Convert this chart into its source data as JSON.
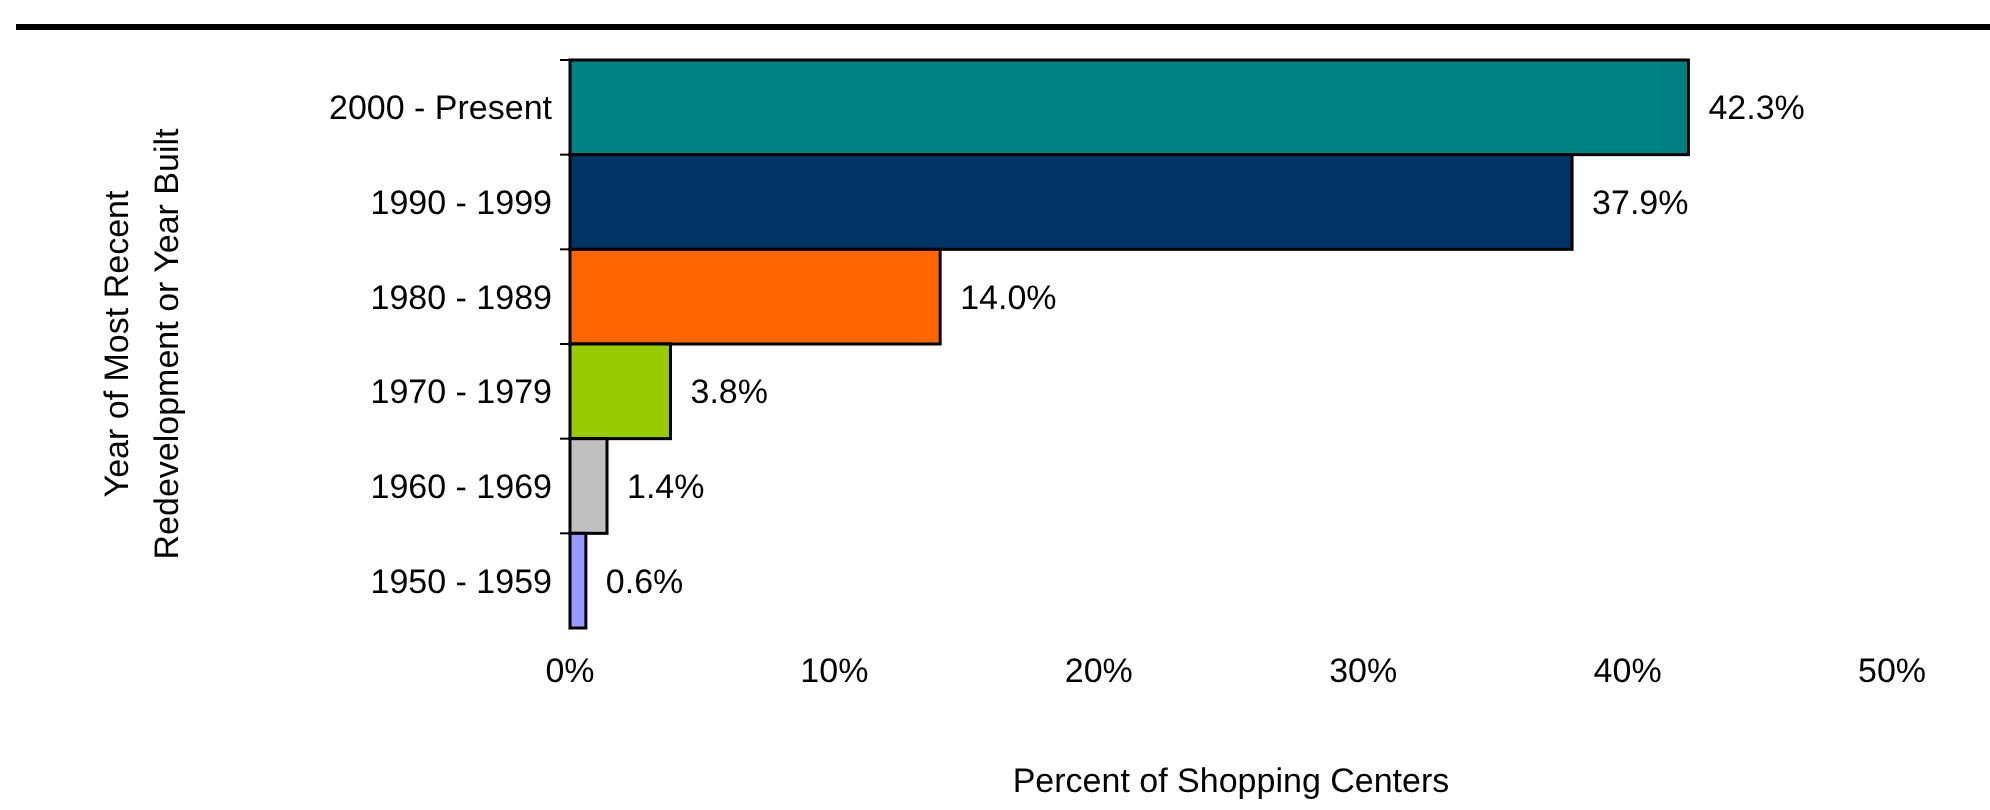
{
  "chart_data": {
    "type": "bar",
    "orientation": "horizontal",
    "xlabel": "Percent of Shopping Centers",
    "ylabel": "Year of Most Recent\nRedevelopment or Year Built",
    "categories": [
      "2000 - Present",
      "1990 - 1999",
      "1980 - 1989",
      "1970 - 1979",
      "1960 - 1969",
      "1950 - 1959"
    ],
    "values": [
      42.3,
      37.9,
      14.0,
      3.8,
      1.4,
      0.6
    ],
    "colors": [
      "#008080",
      "#003366",
      "#ff6600",
      "#99cc00",
      "#c0c0c0",
      "#9999ff"
    ],
    "value_labels": [
      "42.3%",
      "37.9%",
      "14.0%",
      "3.8%",
      "1.4%",
      "0.6%"
    ],
    "xlim": [
      0,
      50
    ],
    "xticks": [
      {
        "value": 0,
        "label": "0%"
      },
      {
        "value": 10,
        "label": "10%"
      },
      {
        "value": 20,
        "label": "20%"
      },
      {
        "value": 30,
        "label": "30%"
      },
      {
        "value": 40,
        "label": "40%"
      },
      {
        "value": 50,
        "label": "50%"
      }
    ],
    "data_labels": false
  }
}
